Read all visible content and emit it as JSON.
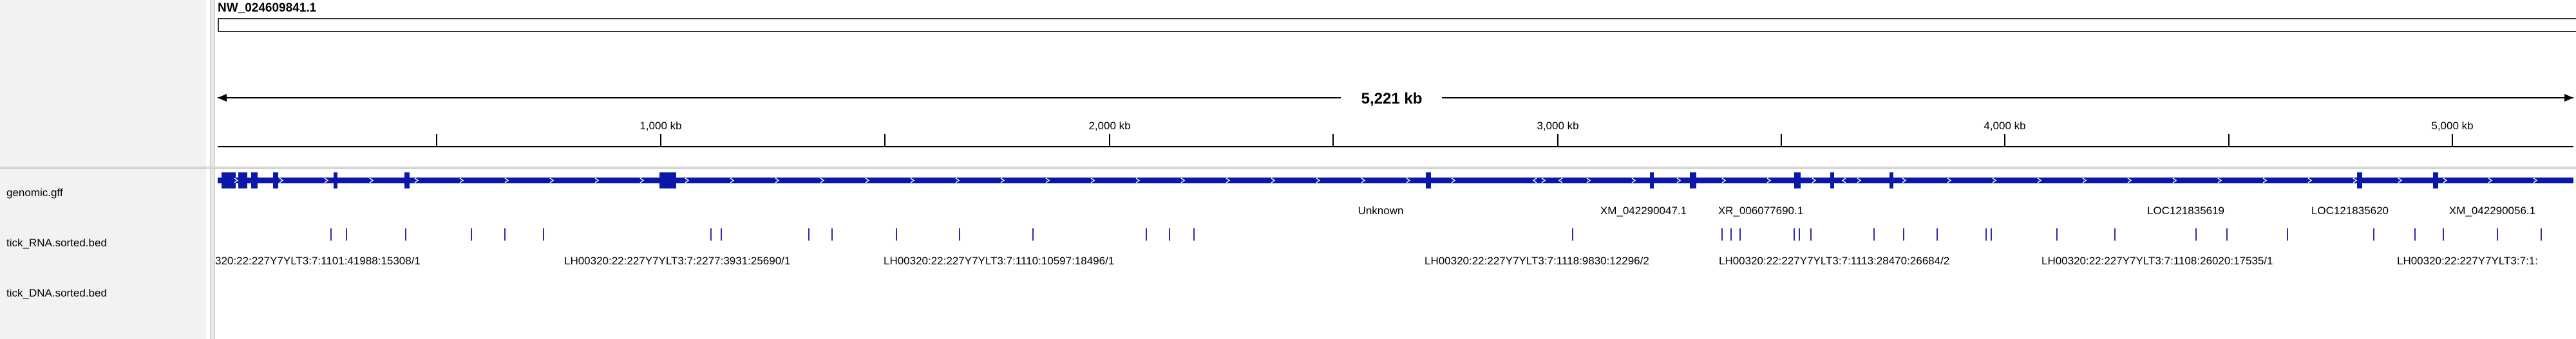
{
  "chromosome": {
    "name": "NW_024609841.1"
  },
  "ruler": {
    "span_label": "5,221 kb",
    "ticks": [
      "1,000 kb",
      "2,000 kb",
      "3,000 kb",
      "4,000 kb",
      "5,000 kb"
    ]
  },
  "tracks": [
    {
      "name": "genomic.gff"
    },
    {
      "name": "tick_RNA.sorted.bed"
    },
    {
      "name": "tick_DNA.sorted.bed"
    }
  ],
  "gff": {
    "color": "#0a17a8",
    "feature_labels": [
      "Unknown",
      "XM_042290047.1",
      "XR_006077690.1",
      "LOC121835619",
      "LOC121835620",
      "XM_042290056.1"
    ]
  },
  "rna": {
    "color": "#2a2ab0",
    "read_labels": [
      "320:22:227Y7YLT3:7:1101:41988:15308/1",
      "LH00320:22:227Y7YLT3:7:2277:3931:25690/1",
      "LH00320:22:227Y7YLT3:7:1110:10597:18496/1",
      "LH00320:22:227Y7YLT3:7:1118:9830:12296/2",
      "LH00320:22:227Y7YLT3:7:1113:28470:26684/2",
      "LH00320:22:227Y7YLT3:7:1108:26020:17535/1",
      "LH00320:22:227Y7YLT3:7:1:"
    ]
  }
}
